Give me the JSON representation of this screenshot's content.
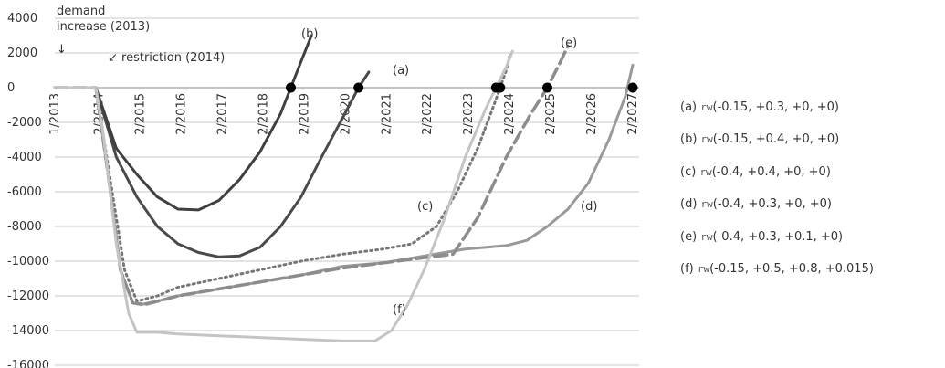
{
  "chart_data": {
    "type": "line",
    "ylim": [
      -16000,
      4000
    ],
    "yticks": [
      4000,
      2000,
      0,
      -2000,
      -4000,
      -6000,
      -8000,
      -10000,
      -12000,
      -14000,
      -16000
    ],
    "ytick_labels": [
      "4000",
      "2000",
      "0",
      "-2000",
      "-4000",
      "-6000",
      "-8000",
      "-10000",
      "-12000",
      "-14000",
      "-16000"
    ],
    "xlim": [
      2013.0,
      2027.08
    ],
    "xticks": [
      2013.0,
      2014.08,
      2015.08,
      2016.08,
      2017.08,
      2018.08,
      2019.08,
      2020.08,
      2021.08,
      2022.08,
      2023.08,
      2024.08,
      2025.08,
      2026.08,
      2027.08
    ],
    "xtick_labels": [
      "1/2013",
      "2/2014",
      "2/2015",
      "2/2016",
      "2/2017",
      "2/2018",
      "2/2019",
      "2/2020",
      "2/2021",
      "2/2022",
      "2/2023",
      "2/2024",
      "2/2025",
      "2/2026",
      "2/2027"
    ],
    "series": [
      {
        "name": "(a)",
        "color": "#4a4a4a",
        "width": 3,
        "dash": "",
        "points": [
          [
            2013.0,
            0
          ],
          [
            2014.0,
            0
          ],
          [
            2014.5,
            -4000
          ],
          [
            2015.0,
            -6300
          ],
          [
            2015.5,
            -8000
          ],
          [
            2016.0,
            -9000
          ],
          [
            2016.5,
            -9500
          ],
          [
            2017.0,
            -9750
          ],
          [
            2017.5,
            -9700
          ],
          [
            2018.0,
            -9200
          ],
          [
            2018.5,
            -8000
          ],
          [
            2019.0,
            -6300
          ],
          [
            2019.5,
            -4000
          ],
          [
            2020.0,
            -1800
          ],
          [
            2020.4,
            0
          ],
          [
            2020.65,
            900
          ]
        ]
      },
      {
        "name": "(b)",
        "color": "#404040",
        "width": 3,
        "dash": "",
        "points": [
          [
            2013.0,
            0
          ],
          [
            2014.0,
            0
          ],
          [
            2014.5,
            -3500
          ],
          [
            2015.0,
            -5000
          ],
          [
            2015.5,
            -6300
          ],
          [
            2016.0,
            -7000
          ],
          [
            2016.5,
            -7050
          ],
          [
            2017.0,
            -6500
          ],
          [
            2017.5,
            -5300
          ],
          [
            2018.0,
            -3700
          ],
          [
            2018.5,
            -1500
          ],
          [
            2018.75,
            0
          ],
          [
            2019.0,
            1500
          ],
          [
            2019.25,
            3000
          ]
        ]
      },
      {
        "name": "(c)",
        "color": "#777777",
        "width": 3,
        "dash": "2 4",
        "points": [
          [
            2013.0,
            0
          ],
          [
            2014.0,
            0
          ],
          [
            2014.4,
            -6000
          ],
          [
            2014.7,
            -10500
          ],
          [
            2015.0,
            -12300
          ],
          [
            2015.5,
            -12000
          ],
          [
            2016.0,
            -11500
          ],
          [
            2017.0,
            -11000
          ],
          [
            2018.0,
            -10500
          ],
          [
            2019.0,
            -10000
          ],
          [
            2020.0,
            -9600
          ],
          [
            2021.0,
            -9300
          ],
          [
            2021.7,
            -9000
          ],
          [
            2022.3,
            -8000
          ],
          [
            2022.8,
            -6000
          ],
          [
            2023.3,
            -3500
          ],
          [
            2023.7,
            -1000
          ],
          [
            2024.0,
            1000
          ],
          [
            2024.1,
            2000
          ]
        ]
      },
      {
        "name": "(d)",
        "color": "#999999",
        "width": 3,
        "dash": "",
        "points": [
          [
            2013.0,
            0
          ],
          [
            2014.0,
            0
          ],
          [
            2014.3,
            -5000
          ],
          [
            2014.6,
            -10500
          ],
          [
            2014.9,
            -12400
          ],
          [
            2015.1,
            -12500
          ],
          [
            2015.5,
            -12300
          ],
          [
            2016.0,
            -12000
          ],
          [
            2017.0,
            -11600
          ],
          [
            2018.0,
            -11200
          ],
          [
            2019.0,
            -10800
          ],
          [
            2020.0,
            -10300
          ],
          [
            2021.0,
            -10100
          ],
          [
            2022.0,
            -9700
          ],
          [
            2023.0,
            -9300
          ],
          [
            2024.0,
            -9100
          ],
          [
            2024.5,
            -8800
          ],
          [
            2025.0,
            -8000
          ],
          [
            2025.5,
            -7000
          ],
          [
            2026.0,
            -5500
          ],
          [
            2026.5,
            -3000
          ],
          [
            2026.9,
            -500
          ],
          [
            2027.08,
            1300
          ]
        ]
      },
      {
        "name": "(e)",
        "color": "#8c8c8c",
        "width": 3.5,
        "dash": "14 6",
        "points": [
          [
            2013.0,
            0
          ],
          [
            2014.0,
            0
          ],
          [
            2014.3,
            -5000
          ],
          [
            2014.6,
            -10500
          ],
          [
            2014.9,
            -12400
          ],
          [
            2015.2,
            -12500
          ],
          [
            2016.0,
            -12000
          ],
          [
            2017.0,
            -11600
          ],
          [
            2018.0,
            -11200
          ],
          [
            2019.0,
            -10800
          ],
          [
            2020.0,
            -10400
          ],
          [
            2021.0,
            -10100
          ],
          [
            2022.0,
            -9800
          ],
          [
            2022.7,
            -9600
          ],
          [
            2023.3,
            -7500
          ],
          [
            2024.0,
            -4000
          ],
          [
            2024.6,
            -1500
          ],
          [
            2025.0,
            0
          ],
          [
            2025.3,
            1400
          ],
          [
            2025.5,
            2400
          ]
        ]
      },
      {
        "name": "(f)",
        "color": "#c4c4c4",
        "width": 3,
        "dash": "",
        "points": [
          [
            2013.0,
            0
          ],
          [
            2014.0,
            0
          ],
          [
            2014.2,
            -3000
          ],
          [
            2014.5,
            -9000
          ],
          [
            2014.8,
            -13000
          ],
          [
            2015.0,
            -14100
          ],
          [
            2015.5,
            -14100
          ],
          [
            2016.0,
            -14200
          ],
          [
            2017.0,
            -14300
          ],
          [
            2018.0,
            -14400
          ],
          [
            2019.0,
            -14500
          ],
          [
            2020.0,
            -14600
          ],
          [
            2020.8,
            -14600
          ],
          [
            2021.2,
            -14000
          ],
          [
            2021.6,
            -12500
          ],
          [
            2022.0,
            -10500
          ],
          [
            2022.5,
            -7500
          ],
          [
            2023.0,
            -4000
          ],
          [
            2023.5,
            -1200
          ],
          [
            2023.75,
            0
          ],
          [
            2024.0,
            1200
          ],
          [
            2024.15,
            2100
          ]
        ]
      }
    ],
    "zero_crossings": [
      2018.75,
      2020.4,
      2023.75,
      2023.85,
      2025.0,
      2027.08
    ],
    "annotations": {
      "demand_line1": "demand",
      "demand_line2": "increase (2013)",
      "demand_arrow": "↓",
      "restriction": "↙ restriction (2014)",
      "a": "(a)",
      "b": "(b)",
      "c": "(c)",
      "d": "(d)",
      "e": "(e)",
      "f": "(f)"
    },
    "grid": true
  },
  "legend": [
    {
      "label": "(a)",
      "code": "rw",
      "args": "(-0.15, +0.3, +0, +0)"
    },
    {
      "label": "(b)",
      "code": "rw",
      "args": "(-0.15, +0.4, +0, +0)"
    },
    {
      "label": "(c)",
      "code": "rw",
      "args": "(-0.4, +0.4, +0, +0)"
    },
    {
      "label": "(d)",
      "code": "rw",
      "args": "(-0.4, +0.3, +0, +0)"
    },
    {
      "label": "(e)",
      "code": "rw",
      "args": "(-0.4, +0.3, +0.1, +0)"
    },
    {
      "label": "(f)",
      "code": "rw",
      "args": "(-0.15, +0.5, +0.8, +0.015)"
    }
  ]
}
